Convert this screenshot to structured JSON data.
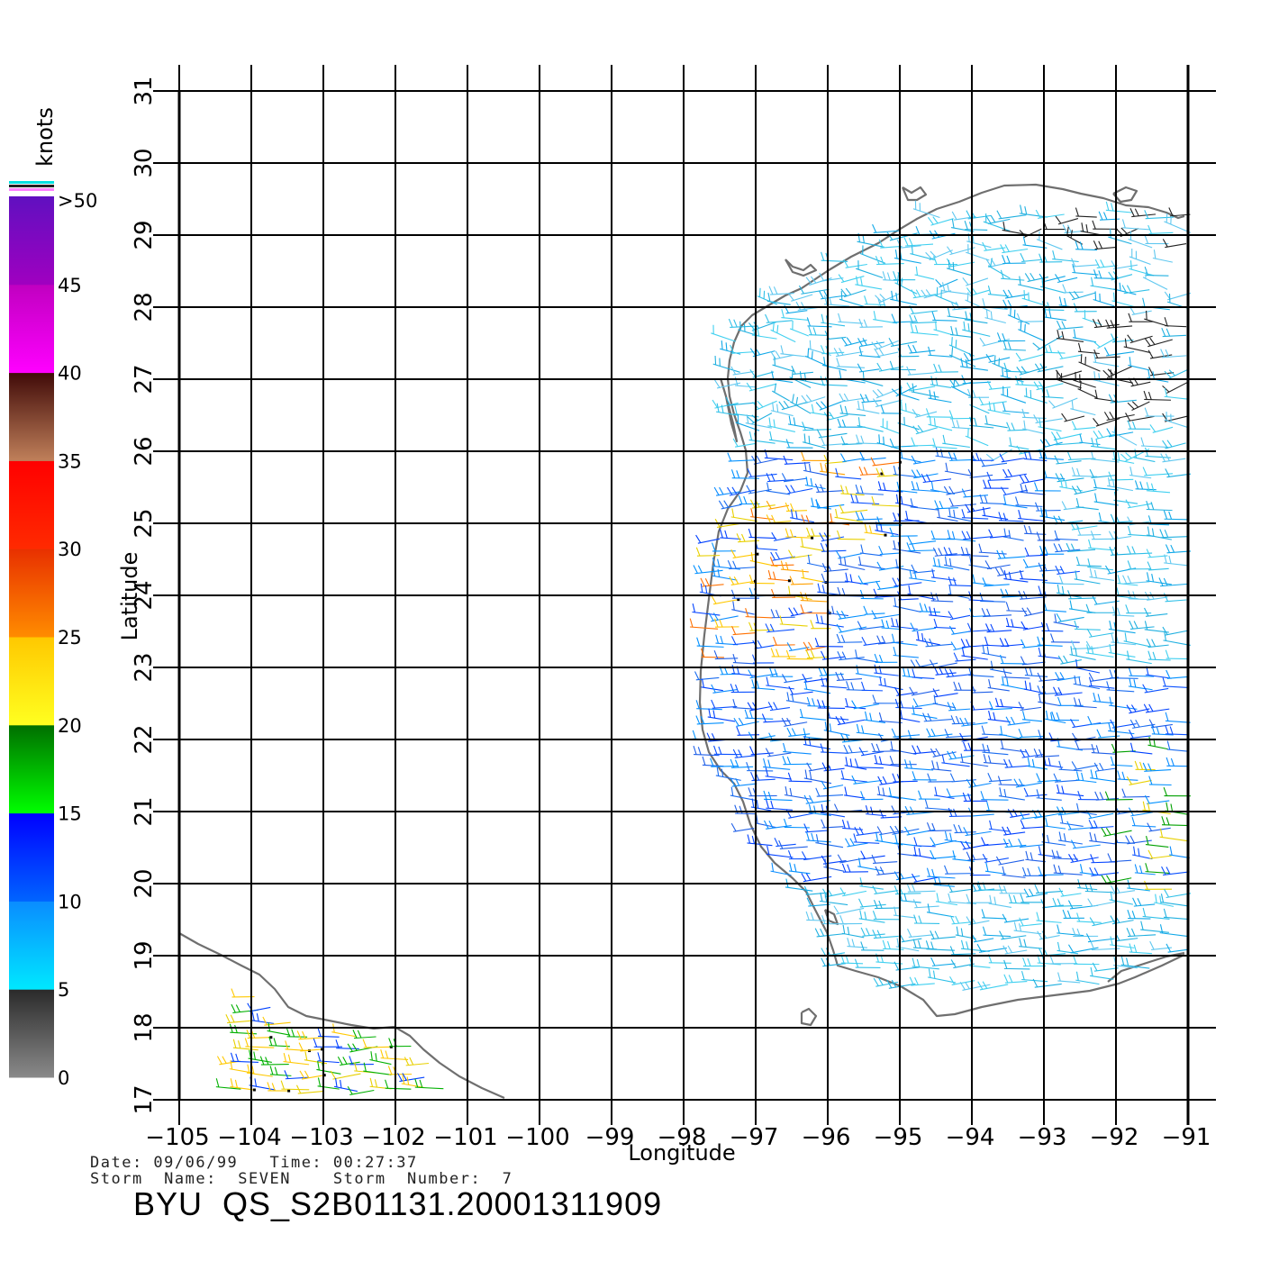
{
  "map": {
    "x_axis": {
      "label": "Longitude",
      "ticks": [
        "−105",
        "−104",
        "−103",
        "−102",
        "−101",
        "−100",
        "−99",
        "−98",
        "−97",
        "−96",
        "−95",
        "−94",
        "−93",
        "−92",
        "−91"
      ]
    },
    "y_axis": {
      "label": "Latitude",
      "ticks": [
        "17",
        "18",
        "19",
        "20",
        "21",
        "22",
        "23",
        "24",
        "25",
        "26",
        "27",
        "28",
        "29",
        "30",
        "31"
      ]
    },
    "lon_range": [
      -105,
      -90.6
    ],
    "lat_range": [
      17,
      31
    ],
    "coastline_color": "#6f6f6f",
    "grid_color": "#000000"
  },
  "color_scale": {
    "unit": "knots",
    "labels": [
      ">50",
      "45",
      "40",
      "35",
      "30",
      "25",
      "20",
      "15",
      "10",
      "5",
      "0"
    ],
    "bands": [
      {
        "from": 0,
        "to": 5,
        "top": "#2a2a2a",
        "bottom": "#8a8a8a"
      },
      {
        "from": 5,
        "to": 10,
        "top": "#0a8cff",
        "bottom": "#00e8ff"
      },
      {
        "from": 10,
        "to": 15,
        "top": "#0000ff",
        "bottom": "#0064ff"
      },
      {
        "from": 15,
        "to": 20,
        "top": "#006e00",
        "bottom": "#00ff00"
      },
      {
        "from": 20,
        "to": 25,
        "top": "#ffc800",
        "bottom": "#ffff20"
      },
      {
        "from": 25,
        "to": 30,
        "top": "#e83000",
        "bottom": "#ff8c00"
      },
      {
        "from": 30,
        "to": 35,
        "top": "#ff0000",
        "bottom": "#ff2a00"
      },
      {
        "from": 35,
        "to": 40,
        "top": "#400a08",
        "bottom": "#c0805a"
      },
      {
        "from": 40,
        "to": 45,
        "top": "#c000c0",
        "bottom": "#ff00ff"
      },
      {
        "from": 45,
        "to": 50,
        "top": "#6010c0",
        "bottom": "#a000c0"
      }
    ],
    "top_stripes": [
      "#00e0e0",
      "#202020",
      "#ff80ff"
    ]
  },
  "info": {
    "line1": "Date: 09/06/99   Time: 00:27:37",
    "line2": "Storm  Name:  SEVEN    Storm  Number:  7",
    "product": "BYU  QS_S2B01131.20001311909"
  }
}
